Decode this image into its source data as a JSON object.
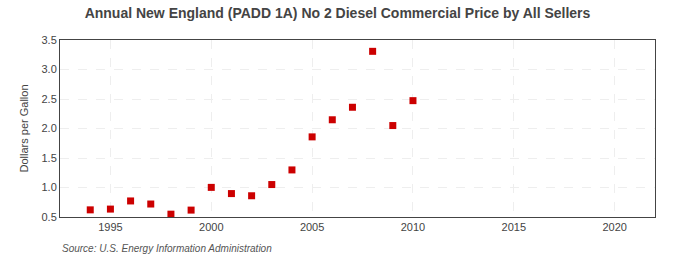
{
  "chart_data": {
    "type": "scatter",
    "title": "Annual New England (PADD 1A) No 2 Diesel Commercial Price by All Sellers",
    "ylabel": "Dollars per Gallon",
    "source": "Source: U.S. Energy Information Administration",
    "x": [
      1994,
      1995,
      1996,
      1997,
      1998,
      1999,
      2000,
      2001,
      2002,
      2003,
      2004,
      2005,
      2006,
      2007,
      2008,
      2009,
      2010
    ],
    "values": [
      0.621,
      0.634,
      0.772,
      0.72,
      0.548,
      0.617,
      1.002,
      0.897,
      0.86,
      1.05,
      1.298,
      1.858,
      2.148,
      2.36,
      3.308,
      2.05,
      2.472
    ],
    "color": "#cc0000",
    "marker": "square",
    "xlim": [
      1992.5,
      2022
    ],
    "ylim": [
      0.5,
      3.5
    ],
    "xticks": [
      1995,
      2000,
      2005,
      2010,
      2015,
      2020
    ],
    "yticks": [
      0.5,
      {
        "value": 1.0,
        "label": "1.0"
      },
      1.5,
      {
        "value": 2.0,
        "label": "2.0"
      },
      2.5,
      {
        "value": 3.0,
        "label": "3.0"
      },
      3.5
    ],
    "grid": true
  }
}
